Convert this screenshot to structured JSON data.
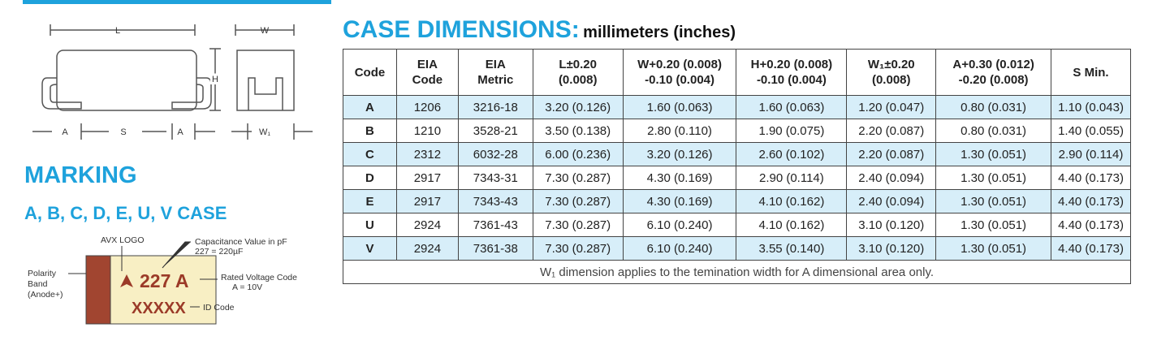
{
  "dimension_diagram": {
    "labels": [
      "L",
      "W",
      "H",
      "A",
      "S",
      "A",
      "W₁"
    ]
  },
  "marking": {
    "title": "MARKING",
    "subtitle": "A, B, C, D, E, U, V CASE",
    "logo_label": "AVX LOGO",
    "capacitance_label": [
      "Capacitance Value in pF",
      "227 = 220µF"
    ],
    "polarity_label": [
      "Polarity",
      "Band",
      "(Anode+)"
    ],
    "voltage_label": [
      "Rated Voltage Code",
      "A = 10V"
    ],
    "id_label": "ID Code",
    "line1": "227 A",
    "line2": "XXXXX"
  },
  "case_dimensions": {
    "title": "CASE DIMENSIONS:",
    "units": "millimeters (inches)",
    "table": {
      "headers": [
        "Code",
        "EIA\nCode",
        "EIA\nMetric",
        "L±0.20\n(0.008)",
        "W+0.20 (0.008)\n-0.10 (0.004)",
        "H+0.20 (0.008)\n-0.10 (0.004)",
        "W₁±0.20\n(0.008)",
        "A+0.30 (0.012)\n-0.20 (0.008)",
        "S Min."
      ],
      "rows": [
        [
          "A",
          "1206",
          "3216-18",
          "3.20 (0.126)",
          "1.60 (0.063)",
          "1.60 (0.063)",
          "1.20 (0.047)",
          "0.80 (0.031)",
          "1.10 (0.043)"
        ],
        [
          "B",
          "1210",
          "3528-21",
          "3.50 (0.138)",
          "2.80 (0.110)",
          "1.90 (0.075)",
          "2.20 (0.087)",
          "0.80 (0.031)",
          "1.40 (0.055)"
        ],
        [
          "C",
          "2312",
          "6032-28",
          "6.00 (0.236)",
          "3.20 (0.126)",
          "2.60 (0.102)",
          "2.20 (0.087)",
          "1.30 (0.051)",
          "2.90 (0.114)"
        ],
        [
          "D",
          "2917",
          "7343-31",
          "7.30 (0.287)",
          "4.30 (0.169)",
          "2.90 (0.114)",
          "2.40 (0.094)",
          "1.30 (0.051)",
          "4.40 (0.173)"
        ],
        [
          "E",
          "2917",
          "7343-43",
          "7.30 (0.287)",
          "4.30 (0.169)",
          "4.10 (0.162)",
          "2.40 (0.094)",
          "1.30 (0.051)",
          "4.40 (0.173)"
        ],
        [
          "U",
          "2924",
          "7361-43",
          "7.30 (0.287)",
          "6.10 (0.240)",
          "4.10 (0.162)",
          "3.10 (0.120)",
          "1.30 (0.051)",
          "4.40 (0.173)"
        ],
        [
          "V",
          "2924",
          "7361-38",
          "7.30 (0.287)",
          "6.10 (0.240)",
          "3.55 (0.140)",
          "3.10 (0.120)",
          "1.30 (0.051)",
          "4.40 (0.173)"
        ]
      ],
      "footnote": "W₁ dimension applies to the temination width for A dimensional area only."
    }
  }
}
